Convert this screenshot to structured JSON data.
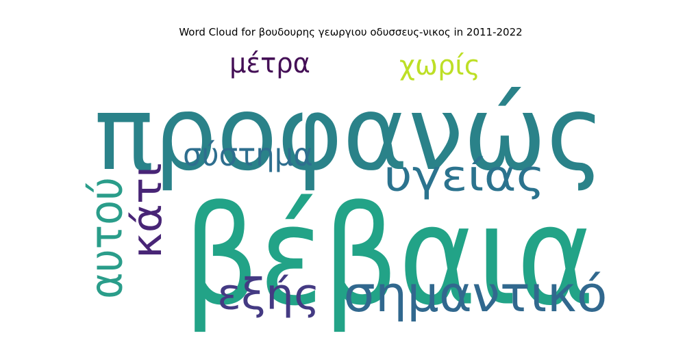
{
  "chart_data": {
    "type": "wordcloud",
    "title": "Word Cloud for βουδουρης γεωργιου οδυσσευς-νικος in 2011-2022",
    "words": [
      {
        "text": "προφανώς",
        "weight": 1.0,
        "color": "#2a8289",
        "orientation": "horizontal"
      },
      {
        "text": "βέβαια",
        "weight": 1.0,
        "color": "#22a387",
        "orientation": "horizontal"
      },
      {
        "text": "σημαντικό",
        "weight": 0.45,
        "color": "#31688e",
        "orientation": "horizontal"
      },
      {
        "text": "υγείας",
        "weight": 0.38,
        "color": "#2b738e",
        "orientation": "horizontal"
      },
      {
        "text": "εξής",
        "weight": 0.38,
        "color": "#443a83",
        "orientation": "horizontal"
      },
      {
        "text": "αυτού",
        "weight": 0.38,
        "color": "#2a9d8a",
        "orientation": "vertical"
      },
      {
        "text": "κάτι",
        "weight": 0.34,
        "color": "#482576",
        "orientation": "vertical"
      },
      {
        "text": "σύστημα",
        "weight": 0.28,
        "color": "#2e6e8e",
        "orientation": "horizontal"
      },
      {
        "text": "μέτρα",
        "weight": 0.25,
        "color": "#440f56",
        "orientation": "horizontal"
      },
      {
        "text": "χωρίς",
        "weight": 0.25,
        "color": "#bddf26",
        "orientation": "horizontal"
      }
    ]
  }
}
